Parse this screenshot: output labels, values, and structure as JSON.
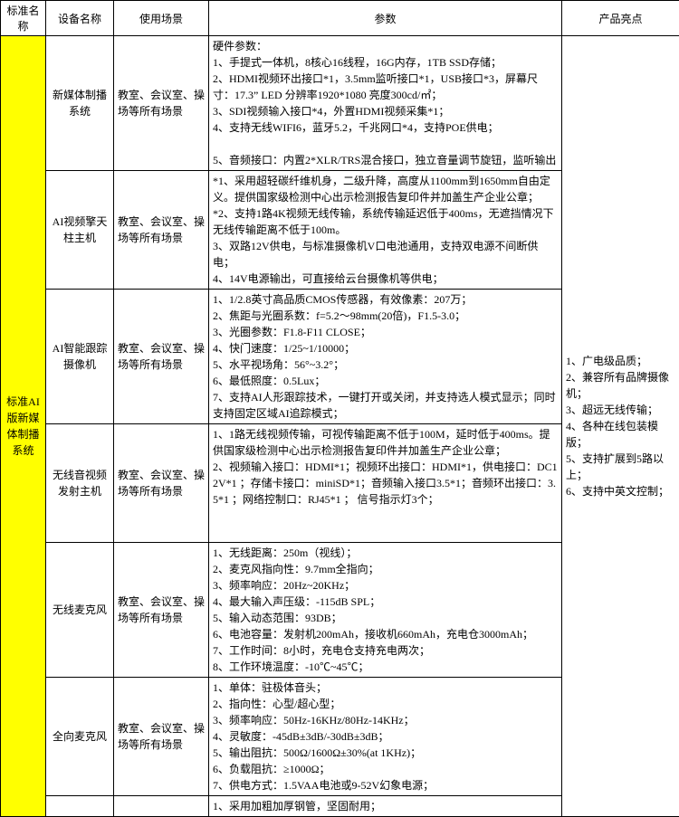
{
  "headers": {
    "c1": "标准名称",
    "c2": "设备名称",
    "c3": "使用场景",
    "c4": "参数",
    "c5": "产品亮点"
  },
  "standard": "标准AI版新媒体制播系统",
  "highlights": "1、广电级品质；\n2、兼容所有品牌摄像机；\n3、超远无线传输；\n4、各种在线包装模版；\n5、支持扩展到5路以上；\n6、支持中英文控制；",
  "rows": [
    {
      "dev": "新媒体制播系统",
      "use": "教室、会议室、操场等所有场景",
      "par": "硬件参数：\n1、手提式一体机，8核心16线程，16G内存，1TB SSD存储；\n2、HDMI视频环出接口*1，3.5mm监听接口*1，USB接口*3，屏幕尺寸：17.3” LED 分辨率1920*1080 亮度300cd/㎡；\n3、SDI视频输入接口*4，外置HDMI视频采集*1；\n4、支持无线WIFI6，蓝牙5.2，千兆网口*4，支持POE供电；\n\n5、音频接口：内置2*XLR/TRS混合接口，独立音量调节旋钮，监听输出"
    },
    {
      "dev": "AI视频擎天柱主机",
      "use": "教室、会议室、操场等所有场景",
      "par": "*1、采用超轻碳纤维机身，二级升降，高度从1100mm到1650mm自由定义。提供国家级检测中心出示检测报告复印件并加盖生产企业公章；\n*2、支持1路4K视频无线传输，系统传输延迟低于400ms，无遮挡情况下无线传输距离不低于100m。\n3、双路12V供电，与标准摄像机V口电池通用，支持双电源不间断供电；\n4、14V电源输出，可直接给云台摄像机等供电；"
    },
    {
      "dev": "AI智能跟踪摄像机",
      "use": "教室、会议室、操场等所有场景",
      "par": "1、1/2.8英寸高品质CMOS传感器，有效像素：207万；\n2、焦距与光圈系数：f=5.2～98mm(20倍)，F1.5-3.0；\n3、光圈参数：F1.8-F11 CLOSE；\n4、快门速度：1/25~1/10000；\n5、水平视场角：56°~3.2°；\n6、最低照度：0.5Lux；\n7、支持AI人形跟踪技术，一键打开或关闭，并支持选人模式显示；同时支持固定区域AI追踪模式；"
    },
    {
      "dev": "无线音视频发射主机",
      "use": "教室、会议室、操场等所有场景",
      "par": "1、1路无线视频传输，可视传输距离不低于100M，延时低于400ms。提供国家级检测中心出示检测报告复印件并加盖生产企业公章；\n2、视频输入接口：HDMI*1；视频环出接口：HDMI*1，供电接口：DC12V*1 ；存储卡接口：miniSD*1；音频输入接口3.5*1；音频环出接口：3.5*1 ；网络控制口：RJ45*1 ；  信号指示灯3个；\n\n"
    },
    {
      "dev": "无线麦克风",
      "use": "教室、会议室、操场等所有场景",
      "par": "1、无线距离：250m（视线）；\n2、麦克风指向性：9.7mm全指向；\n3、频率响应：20Hz~20KHz；\n4、最大输入声压级：-115dB SPL；\n5、输入动态范围：93DB；\n6、电池容量：发射机200mAh，接收机660mAh，充电仓3000mAh；\n7、工作时间：8小时，充电仓支持充电两次；\n8、工作环境温度：-10℃~45℃；"
    },
    {
      "dev": "全向麦克风",
      "use": "教室、会议室、操场等所有场景",
      "par": "1、单体：驻极体音头；\n2、指向性：心型/超心型；\n3、频率响应：50Hz-16KHz/80Hz-14KHz；\n4、灵敏度：-45dB±3dB/-30dB±3dB；\n5、输出阻抗：500Ω/1600Ω±30%(at 1KHz)；\n6、负载阻抗：≥1000Ω；\n7、供电方式：1.5VAA电池或9-52V幻象电源；"
    },
    {
      "dev": "",
      "use": "",
      "par": "1、采用加粗加厚钢管，坚固耐用；"
    }
  ]
}
